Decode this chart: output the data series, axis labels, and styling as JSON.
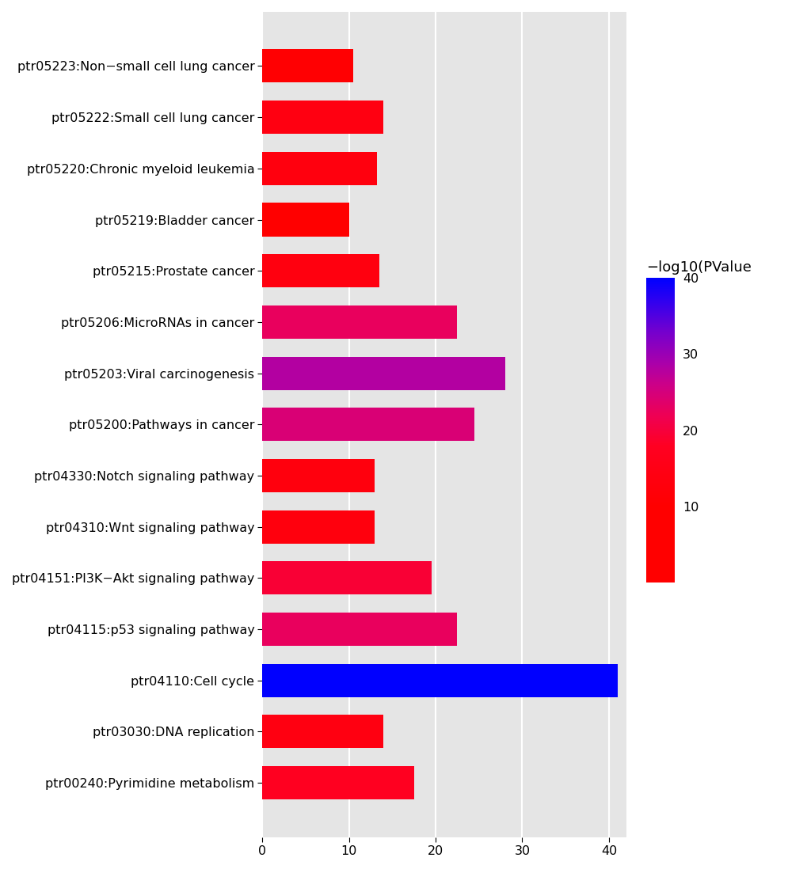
{
  "categories": [
    "ptr05223:Non−small cell lung cancer",
    "ptr05222:Small cell lung cancer",
    "ptr05220:Chronic myeloid leukemia",
    "ptr05219:Bladder cancer",
    "ptr05215:Prostate cancer",
    "ptr05206:MicroRNAs in cancer",
    "ptr05203:Viral carcinogenesis",
    "ptr05200:Pathways in cancer",
    "ptr04330:Notch signaling pathway",
    "ptr04310:Wnt signaling pathway",
    "ptr04151:PI3K−Akt signaling pathway",
    "ptr04115:p53 signaling pathway",
    "ptr04110:Cell cycle",
    "ptr03030:DNA replication",
    "ptr00240:Pyrimidine metabolism"
  ],
  "values": [
    10.5,
    14.0,
    13.2,
    10.0,
    13.5,
    22.5,
    28.0,
    24.5,
    13.0,
    13.0,
    19.5,
    22.5,
    41.0,
    14.0,
    17.5
  ],
  "colormap_min": 0,
  "colormap_max": 40,
  "colorbar_ticks": [
    10,
    20,
    30,
    40
  ],
  "colorbar_label": "−log10(PValue",
  "xlim": [
    0,
    42
  ],
  "xticks": [
    0,
    10,
    20,
    30,
    40
  ],
  "background_color": "#e5e5e5",
  "grid_color": "#ffffff",
  "tick_fontsize": 11.5,
  "label_fontsize": 13
}
